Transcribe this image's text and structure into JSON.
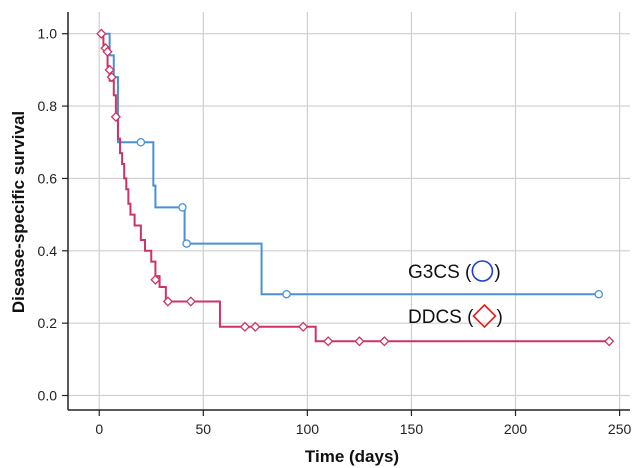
{
  "chart_data": {
    "type": "line",
    "chart_style": "kaplan-meier step plot",
    "xlabel": "Time (days)",
    "ylabel": "Disease-specific survival",
    "xlim": [
      -15,
      255
    ],
    "ylim": [
      -0.04,
      1.06
    ],
    "x_ticks": [
      0,
      50,
      100,
      150,
      200,
      250
    ],
    "y_ticks": [
      0.0,
      0.2,
      0.4,
      0.6,
      0.8,
      1.0
    ],
    "x_tick_labels": [
      "0",
      "50",
      "100",
      "150",
      "200",
      "250"
    ],
    "y_tick_labels": [
      "0.0",
      "0.2",
      "0.4",
      "0.6",
      "0.8",
      "1.0"
    ],
    "grid": true,
    "series": [
      {
        "name": "G3CS",
        "color": "#4a90d9",
        "marker": "circle",
        "steps": [
          [
            0,
            1.0
          ],
          [
            5,
            0.94
          ],
          [
            7,
            0.88
          ],
          [
            9,
            0.7
          ],
          [
            26,
            0.58
          ],
          [
            27,
            0.52
          ],
          [
            41,
            0.42
          ],
          [
            78,
            0.28
          ],
          [
            240,
            0.28
          ]
        ],
        "censored": [
          [
            20,
            0.7
          ],
          [
            40,
            0.52
          ],
          [
            42,
            0.42
          ],
          [
            90,
            0.28
          ],
          [
            240,
            0.28
          ]
        ]
      },
      {
        "name": "DDCS",
        "color": "#cc3366",
        "marker": "diamond",
        "steps": [
          [
            0,
            1.0
          ],
          [
            2,
            0.97
          ],
          [
            3,
            0.95
          ],
          [
            4,
            0.91
          ],
          [
            5,
            0.87
          ],
          [
            7,
            0.83
          ],
          [
            8,
            0.77
          ],
          [
            9,
            0.71
          ],
          [
            10,
            0.67
          ],
          [
            11,
            0.64
          ],
          [
            12,
            0.6
          ],
          [
            13,
            0.57
          ],
          [
            14,
            0.53
          ],
          [
            15,
            0.5
          ],
          [
            17,
            0.47
          ],
          [
            20,
            0.43
          ],
          [
            22,
            0.4
          ],
          [
            25,
            0.37
          ],
          [
            27,
            0.33
          ],
          [
            29,
            0.3
          ],
          [
            32,
            0.26
          ],
          [
            58,
            0.19
          ],
          [
            104,
            0.15
          ],
          [
            245,
            0.15
          ]
        ],
        "censored": [
          [
            1,
            1.0
          ],
          [
            3,
            0.96
          ],
          [
            4,
            0.95
          ],
          [
            5,
            0.9
          ],
          [
            6,
            0.88
          ],
          [
            8,
            0.77
          ],
          [
            27,
            0.32
          ],
          [
            33,
            0.26
          ],
          [
            44,
            0.26
          ],
          [
            70,
            0.19
          ],
          [
            75,
            0.19
          ],
          [
            98,
            0.19
          ],
          [
            110,
            0.15
          ],
          [
            125,
            0.15
          ],
          [
            137,
            0.15
          ],
          [
            245,
            0.15
          ]
        ]
      }
    ],
    "legend": [
      {
        "label": "G3CS (",
        "close": ")",
        "marker": "circle",
        "marker_color": "#1a3fd1"
      },
      {
        "label": "DDCS (",
        "close": ")",
        "marker": "diamond",
        "marker_color": "#e02020"
      }
    ]
  }
}
